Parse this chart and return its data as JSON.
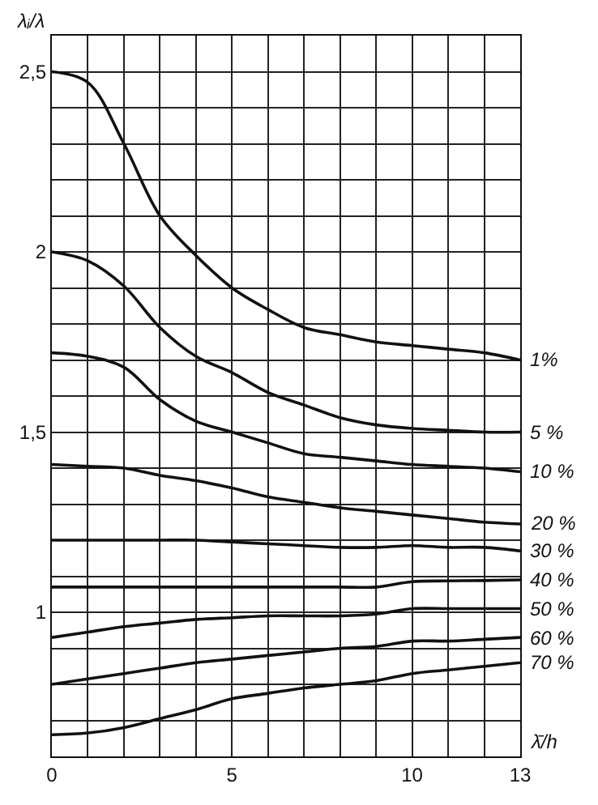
{
  "chart_data": {
    "type": "line",
    "xlabel": "λ̄/h",
    "ylabel": "λᵢ/λ",
    "x": [
      0,
      1,
      2,
      3,
      4,
      5,
      6,
      7,
      8,
      9,
      10,
      11,
      12,
      13
    ],
    "series": [
      {
        "name": "1%",
        "color": "#111111",
        "values": [
          2.5,
          2.47,
          2.3,
          2.1,
          1.99,
          1.9,
          1.84,
          1.79,
          1.77,
          1.75,
          1.74,
          1.73,
          1.72,
          1.7
        ]
      },
      {
        "name": "5 %",
        "color": "#111111",
        "values": [
          2.0,
          1.975,
          1.905,
          1.79,
          1.71,
          1.665,
          1.61,
          1.575,
          1.54,
          1.52,
          1.51,
          1.505,
          1.5,
          1.5
        ]
      },
      {
        "name": "10 %",
        "color": "#111111",
        "values": [
          1.72,
          1.71,
          1.68,
          1.59,
          1.53,
          1.5,
          1.47,
          1.44,
          1.43,
          1.42,
          1.41,
          1.405,
          1.4,
          1.39
        ]
      },
      {
        "name": "20 %",
        "color": "#111111",
        "values": [
          1.41,
          1.405,
          1.4,
          1.38,
          1.365,
          1.345,
          1.32,
          1.305,
          1.29,
          1.28,
          1.27,
          1.26,
          1.25,
          1.245
        ]
      },
      {
        "name": "30 %",
        "color": "#111111",
        "values": [
          1.2,
          1.2,
          1.2,
          1.2,
          1.2,
          1.195,
          1.19,
          1.185,
          1.18,
          1.18,
          1.185,
          1.18,
          1.18,
          1.17
        ]
      },
      {
        "name": "40 %",
        "color": "#111111",
        "values": [
          1.07,
          1.07,
          1.07,
          1.07,
          1.07,
          1.07,
          1.07,
          1.07,
          1.07,
          1.07,
          1.085,
          1.087,
          1.088,
          1.09
        ]
      },
      {
        "name": "50 %",
        "color": "#111111",
        "values": [
          0.93,
          0.945,
          0.96,
          0.97,
          0.98,
          0.985,
          0.99,
          0.99,
          0.99,
          0.995,
          1.01,
          1.01,
          1.01,
          1.01
        ]
      },
      {
        "name": "60 %",
        "color": "#111111",
        "values": [
          0.8,
          0.815,
          0.83,
          0.845,
          0.86,
          0.87,
          0.88,
          0.89,
          0.9,
          0.905,
          0.92,
          0.92,
          0.925,
          0.93
        ]
      },
      {
        "name": "70 %",
        "color": "#111111",
        "values": [
          0.66,
          0.665,
          0.68,
          0.705,
          0.73,
          0.76,
          0.775,
          0.79,
          0.8,
          0.81,
          0.83,
          0.84,
          0.85,
          0.86
        ]
      }
    ],
    "xlim": [
      0,
      13
    ],
    "xticks": [
      0,
      {
        "value": 1,
        "label": null
      },
      {
        "value": 2,
        "label": null
      },
      {
        "value": 3,
        "label": null
      },
      {
        "value": 4,
        "label": null
      },
      5,
      {
        "value": 6,
        "label": null
      },
      {
        "value": 7,
        "label": null
      },
      {
        "value": 8,
        "label": null
      },
      {
        "value": 9,
        "label": null
      },
      10,
      {
        "value": 11,
        "label": null
      },
      {
        "value": 12,
        "label": null
      },
      13
    ],
    "ylim": [
      0.6,
      2.6
    ],
    "yticks": [
      {
        "value": 0.6,
        "label": null
      },
      {
        "value": 0.7,
        "label": null
      },
      {
        "value": 0.8,
        "label": null
      },
      {
        "value": 0.9,
        "label": null
      },
      1,
      {
        "value": 1.1,
        "label": null
      },
      {
        "value": 1.2,
        "label": null
      },
      {
        "value": 1.3,
        "label": null
      },
      {
        "value": 1.4,
        "label": null
      },
      {
        "value": 1.5,
        "label": "1,5"
      },
      {
        "value": 1.6,
        "label": null
      },
      {
        "value": 1.7,
        "label": null
      },
      {
        "value": 1.8,
        "label": null
      },
      {
        "value": 1.9,
        "label": null
      },
      2,
      {
        "value": 2.1,
        "label": null
      },
      {
        "value": 2.2,
        "label": null
      },
      {
        "value": 2.3,
        "label": null
      },
      {
        "value": 2.4,
        "label": null
      },
      {
        "value": 2.5,
        "label": "2,5"
      },
      {
        "value": 2.6,
        "label": null
      }
    ],
    "grid": true,
    "legend": false,
    "marker": "none",
    "line_style": "solid"
  }
}
